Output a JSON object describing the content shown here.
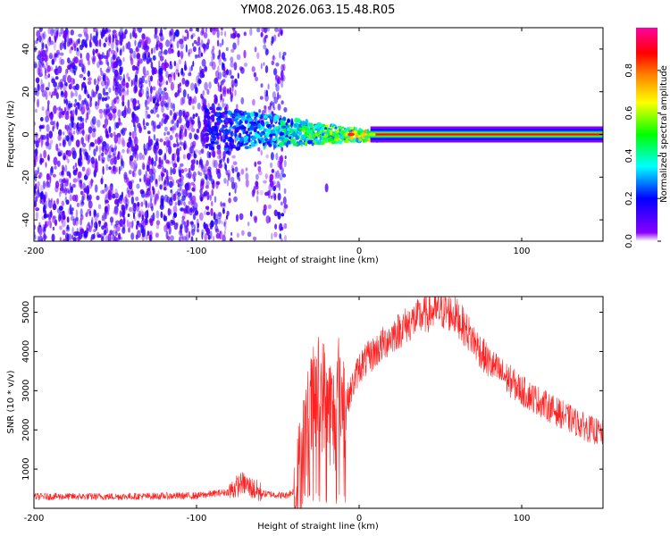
{
  "figure_title": "YM08.2026.063.15.48.R05",
  "chart_data": [
    {
      "type": "heatmap",
      "title": "YM08.2026.063.15.48.R05",
      "xlabel": "Height of straight line (km)",
      "ylabel": "Frequency (Hz)",
      "xlim": [
        -200,
        150
      ],
      "ylim": [
        -50,
        50
      ],
      "x_ticks": [
        -200,
        -100,
        0,
        100
      ],
      "x_tick_labels": [
        "-200",
        "-100",
        "0",
        "100"
      ],
      "y_ticks": [
        -40,
        -20,
        0,
        20,
        40
      ],
      "y_tick_labels": [
        "-40",
        "-20",
        "0",
        "20",
        "40"
      ],
      "colorbar": {
        "label": "Normalized spectral amplitude",
        "range": [
          0,
          1
        ],
        "ticks": [
          0.0,
          0.2,
          0.4,
          0.6,
          0.8
        ],
        "tick_labels": [
          "0.0",
          "0.2",
          "0.4",
          "0.6",
          "0.8"
        ],
        "colors": [
          "#ffffff",
          "#7f00ff",
          "#0000ff",
          "#00ffff",
          "#00ff00",
          "#ffff00",
          "#ff8000",
          "#ff0000",
          "#ff00ff"
        ]
      },
      "regions": [
        {
          "name": "broadband noise",
          "x_range": [
            -200,
            -45
          ],
          "freq_range": [
            -50,
            50
          ],
          "amplitude": 0.1
        },
        {
          "name": "converging band",
          "x_range": [
            -95,
            15
          ],
          "freq_range": [
            -8,
            10
          ],
          "amplitude": 0.35
        },
        {
          "name": "coherent tone",
          "x_range": [
            15,
            150
          ],
          "freq_center": 0,
          "amplitude": 1.0
        }
      ]
    },
    {
      "type": "line",
      "xlabel": "Height of straight line (km)",
      "ylabel": "SNR (10 * v/v)",
      "xlim": [
        -200,
        150
      ],
      "ylim": [
        0,
        5400
      ],
      "x_ticks": [
        -200,
        -100,
        0,
        100
      ],
      "x_tick_labels": [
        "-200",
        "-100",
        "0",
        "100"
      ],
      "y_ticks": [
        1000,
        2000,
        3000,
        4000,
        5000
      ],
      "y_tick_labels": [
        "1000",
        "2000",
        "3000",
        "4000",
        "5000"
      ],
      "series": [
        {
          "name": "SNR",
          "color": "#ff2020",
          "x": [
            -200,
            -150,
            -100,
            -80,
            -72,
            -60,
            -45,
            -38,
            -35,
            -30,
            -25,
            -20,
            -15,
            -12,
            -10,
            -5,
            0,
            10,
            20,
            30,
            40,
            50,
            55,
            60,
            70,
            80,
            100,
            120,
            140,
            150
          ],
          "y": [
            300,
            300,
            320,
            420,
            650,
            380,
            320,
            500,
            1500,
            2400,
            3000,
            2800,
            2200,
            3300,
            2500,
            3000,
            3600,
            4000,
            4400,
            4700,
            4950,
            5050,
            5000,
            4900,
            4300,
            3700,
            3000,
            2500,
            2050,
            1900
          ]
        }
      ]
    }
  ]
}
